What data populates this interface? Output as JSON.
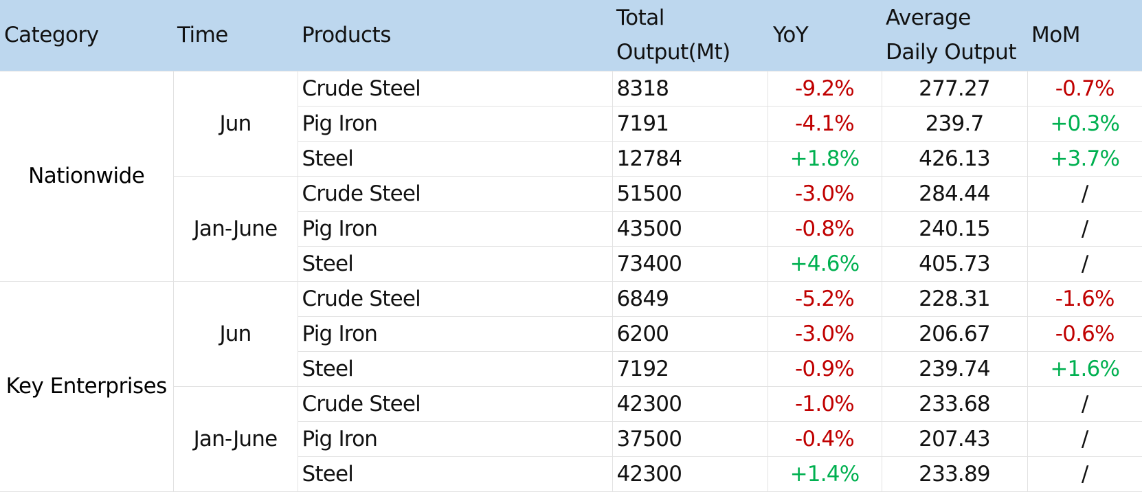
{
  "chart_data": {
    "type": "table",
    "columns": [
      "Category",
      "Time",
      "Products",
      "Total Output(Mt)",
      "YoY",
      "Average Daily Output",
      "MoM"
    ],
    "colors": {
      "header_background": "#bdd7ee",
      "negative": "#c00000",
      "positive": "#00b050"
    },
    "rows": [
      {
        "category": "Nationwide",
        "time": "Jun",
        "product": "Crude Steel",
        "total": "8318",
        "yoy": "-9.2%",
        "avg": "277.27",
        "mom": "-0.7%"
      },
      {
        "category": "Nationwide",
        "time": "Jun",
        "product": "Pig Iron",
        "total": "7191",
        "yoy": "-4.1%",
        "avg": "239.7",
        "mom": "+0.3%"
      },
      {
        "category": "Nationwide",
        "time": "Jun",
        "product": "Steel",
        "total": "12784",
        "yoy": "+1.8%",
        "avg": "426.13",
        "mom": "+3.7%"
      },
      {
        "category": "Nationwide",
        "time": "Jan-June",
        "product": "Crude Steel",
        "total": "51500",
        "yoy": "-3.0%",
        "avg": "284.44",
        "mom": "/"
      },
      {
        "category": "Nationwide",
        "time": "Jan-June",
        "product": "Pig Iron",
        "total": "43500",
        "yoy": "-0.8%",
        "avg": "240.15",
        "mom": "/"
      },
      {
        "category": "Nationwide",
        "time": "Jan-June",
        "product": "Steel",
        "total": "73400",
        "yoy": "+4.6%",
        "avg": "405.73",
        "mom": "/"
      },
      {
        "category": "Key Enterprises",
        "time": "Jun",
        "product": "Crude Steel",
        "total": "6849",
        "yoy": "-5.2%",
        "avg": "228.31",
        "mom": "-1.6%"
      },
      {
        "category": "Key Enterprises",
        "time": "Jun",
        "product": "Pig Iron",
        "total": "6200",
        "yoy": "-3.0%",
        "avg": "206.67",
        "mom": "-0.6%"
      },
      {
        "category": "Key Enterprises",
        "time": "Jun",
        "product": "Steel",
        "total": "7192",
        "yoy": "-0.9%",
        "avg": "239.74",
        "mom": "+1.6%"
      },
      {
        "category": "Key Enterprises",
        "time": "Jan-June",
        "product": "Crude Steel",
        "total": "42300",
        "yoy": "-1.0%",
        "avg": "233.68",
        "mom": "/"
      },
      {
        "category": "Key Enterprises",
        "time": "Jan-June",
        "product": "Pig Iron",
        "total": "37500",
        "yoy": "-0.4%",
        "avg": "207.43",
        "mom": "/"
      },
      {
        "category": "Key Enterprises",
        "time": "Jan-June",
        "product": "Steel",
        "total": "42300",
        "yoy": "+1.4%",
        "avg": "233.89",
        "mom": "/"
      }
    ]
  }
}
